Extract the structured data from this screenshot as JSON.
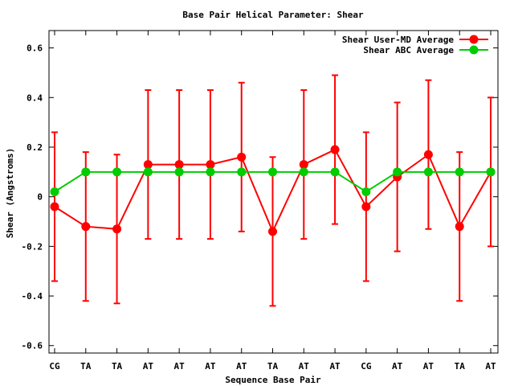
{
  "chart_data": {
    "type": "line",
    "title": "Base Pair Helical Parameter: Shear",
    "xlabel": "Sequence Base Pair",
    "ylabel": "Shear (Angstroms)",
    "categories": [
      "CG",
      "TA",
      "TA",
      "AT",
      "AT",
      "AT",
      "AT",
      "TA",
      "AT",
      "AT",
      "CG",
      "AT",
      "AT",
      "TA",
      "AT"
    ],
    "ylim": [
      -0.63,
      0.67
    ],
    "yticks": [
      -0.6,
      -0.4,
      -0.2,
      0,
      0.2,
      0.4,
      0.6
    ],
    "ytick_labels": [
      "-0.6",
      "-0.4",
      "-0.2",
      "0",
      "0.2",
      "0.4",
      "0.6"
    ],
    "grid": false,
    "legend_position": "top-right",
    "series": [
      {
        "name": "Shear User-MD Average",
        "color": "#ff0000",
        "values": [
          -0.04,
          -0.12,
          -0.13,
          0.13,
          0.13,
          0.13,
          0.16,
          -0.14,
          0.13,
          0.19,
          -0.04,
          0.08,
          0.17,
          -0.12,
          0.1
        ],
        "error": [
          0.3,
          0.3,
          0.3,
          0.3,
          0.3,
          0.3,
          0.3,
          0.3,
          0.3,
          0.3,
          0.3,
          0.3,
          0.3,
          0.3,
          0.3
        ]
      },
      {
        "name": "Shear ABC Average",
        "color": "#00cc00",
        "values": [
          0.02,
          0.1,
          0.1,
          0.1,
          0.1,
          0.1,
          0.1,
          0.1,
          0.1,
          0.1,
          0.02,
          0.1,
          0.1,
          0.1,
          0.1
        ]
      }
    ]
  }
}
